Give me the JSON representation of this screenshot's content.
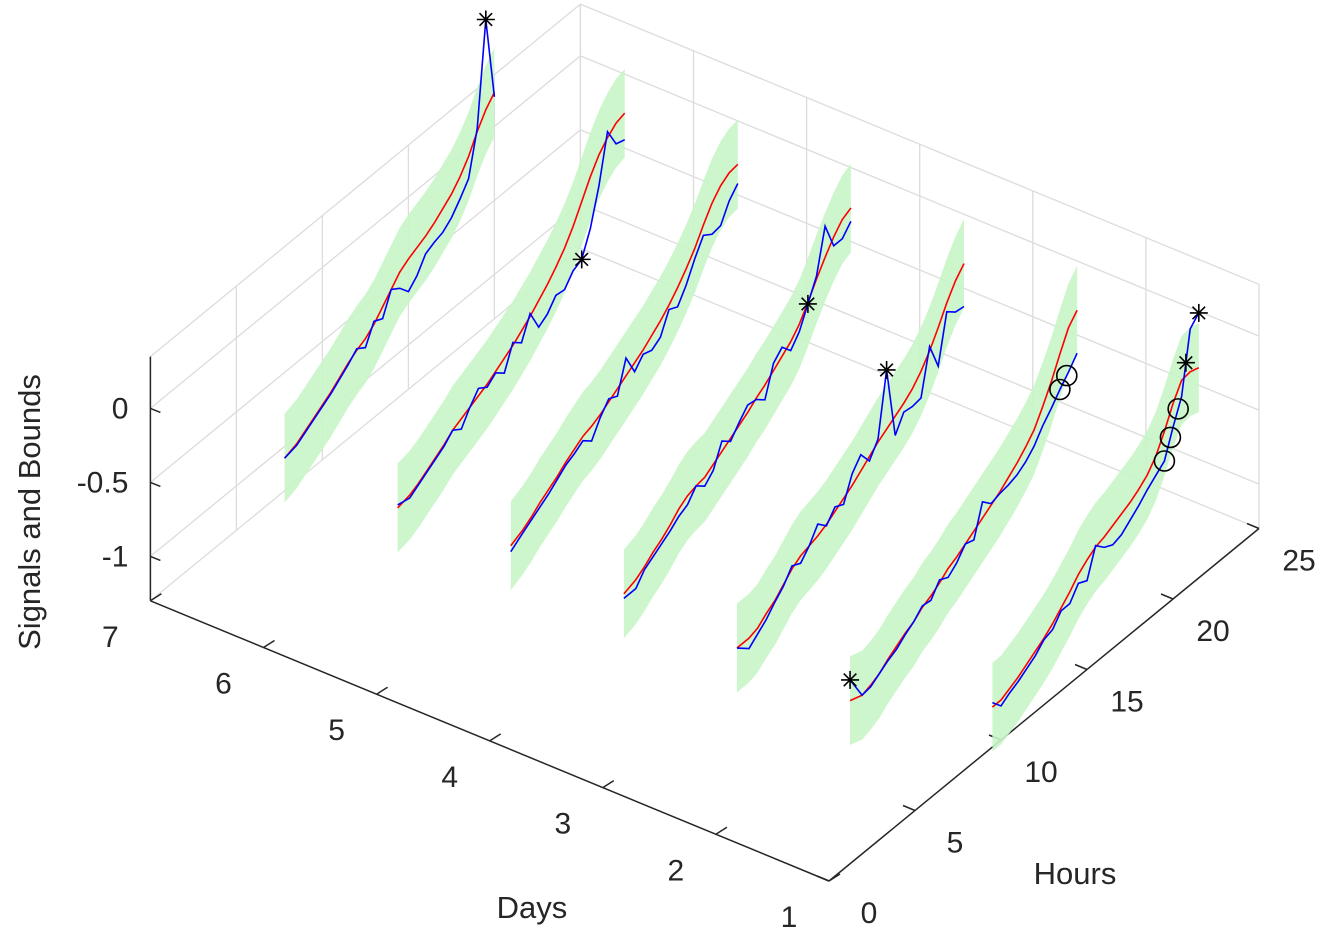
{
  "chart_data": {
    "type": "line",
    "chart_kind": "3d-waterfall",
    "xlabel": "Hours",
    "ylabel": "Days",
    "zlabel": "Signals and Bounds",
    "x_ticks": [
      "0",
      "5",
      "10",
      "15",
      "20",
      "25"
    ],
    "y_ticks": [
      "1",
      "2",
      "3",
      "4",
      "5",
      "6",
      "7"
    ],
    "z_ticks": [
      "-1",
      "-0.5",
      "0"
    ],
    "xlim": [
      0,
      25
    ],
    "ylim": [
      1,
      7
    ],
    "zlim": [
      -1.3,
      0.35
    ],
    "grid": true,
    "colors": {
      "signal": "#0000ff",
      "model": "#ff0000",
      "bounds": "#c8f5c8",
      "outlier_high": "#000000",
      "outlier_low": "#000000",
      "axis": "#262626",
      "grid": "#dcdcdc"
    },
    "legend": [],
    "series": [
      {
        "day": 1,
        "hours": [
          9.5,
          10,
          10.5,
          11,
          11.5,
          12,
          12.5,
          13,
          13.5,
          14,
          14.5,
          15,
          15.5,
          16,
          16.5,
          17,
          17.5,
          18,
          18.5,
          19,
          19.5,
          20,
          20.5,
          21,
          21.5
        ],
        "model": [
          -1.03,
          -1.03,
          -1.0,
          -0.97,
          -0.93,
          -0.89,
          -0.85,
          -0.8,
          -0.74,
          -0.68,
          -0.61,
          -0.56,
          -0.52,
          -0.5,
          -0.47,
          -0.44,
          -0.41,
          -0.37,
          -0.32,
          -0.24,
          -0.12,
          0.02,
          0.13,
          0.14,
          0.12
        ],
        "signal": [
          -1.0,
          -1.07,
          -1.03,
          -1.0,
          -0.96,
          -0.92,
          -0.86,
          -0.84,
          -0.76,
          -0.76,
          -0.67,
          -0.7,
          -0.51,
          -0.57,
          -0.6,
          -0.58,
          -0.53,
          -0.48,
          -0.42,
          -0.37,
          -0.32,
          -0.14,
          0.02,
          0.43,
          0.49
        ],
        "bound_width": 0.3,
        "high_points": [
          20.75,
          21.5
        ],
        "low_points": [
          19.5,
          19.85,
          20.3
        ]
      },
      {
        "day": 2,
        "hours": [
          7.8,
          8.5,
          9,
          9.5,
          10,
          10.5,
          11,
          11.5,
          12,
          12.5,
          13,
          13.5,
          14,
          14.5,
          15,
          15.5,
          16,
          16.5,
          17,
          17.5,
          18,
          18.5,
          19,
          19.5,
          20,
          20.5,
          21
        ],
        "model": [
          -1.14,
          -1.17,
          -1.15,
          -1.12,
          -1.07,
          -1.03,
          -0.99,
          -0.96,
          -0.91,
          -0.88,
          -0.84,
          -0.79,
          -0.76,
          -0.72,
          -0.68,
          -0.64,
          -0.6,
          -0.56,
          -0.51,
          -0.46,
          -0.4,
          -0.33,
          -0.22,
          -0.1,
          0.04,
          0.17,
          0.24
        ],
        "signal": [
          -1.0,
          -1.17,
          -1.16,
          -1.12,
          -1.08,
          -1.05,
          -1.0,
          -0.96,
          -0.9,
          -0.91,
          -0.82,
          -0.85,
          -0.8,
          -0.72,
          -0.74,
          -0.53,
          -0.59,
          -0.57,
          -0.56,
          -0.54,
          -0.5,
          -0.44,
          -0.35,
          -0.28,
          -0.2,
          -0.13,
          -0.05
        ],
        "bound_width": 0.3,
        "high_points": [
          7.8
        ],
        "low_points": [
          20,
          20.4
        ]
      },
      {
        "day": 3,
        "hours": [
          7.8,
          8.5,
          9,
          9.5,
          10,
          10.5,
          11,
          11.5,
          12,
          12.5,
          13,
          13.5,
          14,
          14.5,
          15,
          15.5,
          16,
          16.5,
          17,
          17.5,
          18,
          18.5,
          19,
          19.5,
          20,
          20.5,
          21
        ],
        "model": [
          -1.1,
          -1.1,
          -1.08,
          -1.03,
          -0.99,
          -0.93,
          -0.87,
          -0.83,
          -0.81,
          -0.79,
          -0.76,
          -0.72,
          -0.68,
          -0.64,
          -0.59,
          -0.54,
          -0.49,
          -0.45,
          -0.41,
          -0.37,
          -0.32,
          -0.25,
          -0.16,
          -0.05,
          0.07,
          0.17,
          0.24
        ],
        "signal": [
          -1.1,
          -1.17,
          -1.12,
          -1.07,
          -1.0,
          -0.94,
          -0.85,
          -0.88,
          -0.81,
          -0.71,
          -0.77,
          -0.69,
          -0.72,
          -0.56,
          -0.48,
          -0.57,
          -0.47,
          -0.05,
          -0.54,
          -0.43,
          -0.44,
          -0.43,
          -0.13,
          -0.31,
          0.01,
          -0.04,
          -0.05
        ],
        "bound_width": 0.3,
        "high_points": [
          16.5
        ],
        "low_points": []
      },
      {
        "day": 4,
        "hours": [
          7.8,
          8.5,
          9,
          9.5,
          10,
          10.5,
          11,
          11.5,
          12,
          12.5,
          13,
          13.5,
          14,
          14.5,
          15,
          15.5,
          16,
          16.5,
          17,
          17.5,
          18,
          18.5,
          19,
          19.5,
          20,
          20.5,
          21
        ],
        "model": [
          -1.05,
          -1.02,
          -0.98,
          -0.93,
          -0.89,
          -0.84,
          -0.78,
          -0.74,
          -0.72,
          -0.71,
          -0.67,
          -0.63,
          -0.59,
          -0.55,
          -0.51,
          -0.46,
          -0.42,
          -0.37,
          -0.32,
          -0.27,
          -0.2,
          -0.1,
          0.01,
          0.11,
          0.2,
          0.27,
          0.3
        ],
        "signal": [
          -1.08,
          -1.08,
          -1.0,
          -0.96,
          -0.92,
          -0.88,
          -0.83,
          -0.8,
          -0.72,
          -0.77,
          -0.71,
          -0.56,
          -0.61,
          -0.53,
          -0.46,
          -0.47,
          -0.52,
          -0.32,
          -0.26,
          -0.33,
          -0.25,
          -0.11,
          0.03,
          0.32,
          0.14,
          0.14,
          0.21
        ],
        "bound_width": 0.3,
        "high_points": [
          18.5
        ],
        "low_points": []
      },
      {
        "day": 5,
        "hours": [
          7.8,
          8.5,
          9,
          9.5,
          10,
          10.5,
          11,
          11.5,
          12,
          12.5,
          13,
          13.5,
          14,
          14.5,
          15,
          15.5,
          16,
          16.5,
          17,
          17.5,
          18,
          18.5,
          19,
          19.5,
          20,
          20.5,
          21
        ],
        "model": [
          -1.04,
          -1.0,
          -0.96,
          -0.91,
          -0.87,
          -0.83,
          -0.78,
          -0.74,
          -0.7,
          -0.68,
          -0.65,
          -0.61,
          -0.57,
          -0.53,
          -0.49,
          -0.45,
          -0.4,
          -0.35,
          -0.29,
          -0.22,
          -0.14,
          -0.05,
          0.06,
          0.16,
          0.23,
          0.27,
          0.28
        ],
        "signal": [
          -1.08,
          -1.02,
          -0.98,
          -0.94,
          -0.9,
          -0.85,
          -0.8,
          -0.77,
          -0.73,
          -0.78,
          -0.67,
          -0.59,
          -0.62,
          -0.41,
          -0.55,
          -0.48,
          -0.5,
          -0.46,
          -0.32,
          -0.35,
          -0.25,
          -0.12,
          -0.01,
          -0.05,
          -0.04,
          0.08,
          0.15
        ],
        "bound_width": 0.3,
        "high_points": [],
        "low_points": []
      },
      {
        "day": 6,
        "hours": [
          7.8,
          8.5,
          9,
          9.5,
          10,
          10.5,
          11,
          11.5,
          12,
          12.5,
          13,
          13.5,
          14,
          14.5,
          15,
          15.5,
          16,
          16.5,
          17,
          17.5,
          18,
          18.5,
          19,
          19.5,
          20,
          20.5,
          21
        ],
        "model": [
          -1.1,
          -1.08,
          -1.05,
          -1.01,
          -0.97,
          -0.93,
          -0.88,
          -0.85,
          -0.82,
          -0.79,
          -0.76,
          -0.72,
          -0.68,
          -0.64,
          -0.59,
          -0.54,
          -0.48,
          -0.42,
          -0.35,
          -0.27,
          -0.17,
          -0.05,
          0.07,
          0.17,
          0.24,
          0.29,
          0.31
        ],
        "signal": [
          -1.08,
          -1.1,
          -1.06,
          -1.02,
          -0.98,
          -0.94,
          -0.88,
          -0.92,
          -0.82,
          -0.74,
          -0.78,
          -0.73,
          -0.78,
          -0.62,
          -0.67,
          -0.52,
          -0.66,
          -0.62,
          -0.54,
          -0.55,
          -0.47,
          -0.44,
          -0.28,
          -0.04,
          0.28,
          0.15,
          0.13
        ],
        "bound_width": 0.3,
        "high_points": [
          18.5
        ],
        "low_points": []
      },
      {
        "day": 7,
        "hours": [
          7.8,
          8.5,
          9,
          9.5,
          10,
          10.5,
          11,
          11.5,
          12,
          12.5,
          13,
          13.5,
          14,
          14.5,
          15,
          15.5,
          16,
          16.5,
          17,
          17.5,
          18,
          18.5,
          19,
          19.5,
          20
        ],
        "model": [
          -1.08,
          -1.05,
          -1.01,
          -0.97,
          -0.93,
          -0.89,
          -0.84,
          -0.79,
          -0.75,
          -0.72,
          -0.67,
          -0.6,
          -0.53,
          -0.46,
          -0.42,
          -0.39,
          -0.36,
          -0.32,
          -0.27,
          -0.22,
          -0.15,
          -0.06,
          0.06,
          0.16,
          0.23
        ],
        "signal": [
          -1.08,
          -1.06,
          -1.02,
          -0.98,
          -0.94,
          -0.9,
          -0.85,
          -0.8,
          -0.74,
          -0.78,
          -0.65,
          -0.68,
          -0.53,
          -0.57,
          -0.64,
          -0.58,
          -0.48,
          -0.45,
          -0.43,
          -0.38,
          -0.3,
          -0.21,
          0.08,
          0.77,
          0.2
        ],
        "bound_width": 0.3,
        "high_points": [
          19.5
        ],
        "low_points": []
      }
    ]
  }
}
